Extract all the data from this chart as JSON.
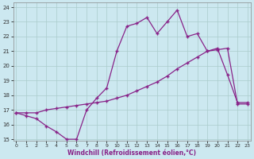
{
  "xlabel": "Windchill (Refroidissement éolien,°C)",
  "bg_color": "#cce8f0",
  "grid_color": "#aacccc",
  "line_color": "#882288",
  "line1_x": [
    0,
    1,
    2,
    3,
    4,
    5,
    6,
    7,
    8,
    9,
    10,
    11,
    12,
    13,
    14,
    15,
    16,
    17,
    18,
    19,
    20,
    21,
    22,
    23
  ],
  "line1_y": [
    16.8,
    16.6,
    16.4,
    15.9,
    15.5,
    15.0,
    15.0,
    17.0,
    17.8,
    18.5,
    21.0,
    22.7,
    22.9,
    23.3,
    22.2,
    23.0,
    23.8,
    22.0,
    22.2,
    21.0,
    21.2,
    19.4,
    17.5,
    17.5
  ],
  "line2_x": [
    0,
    1,
    2,
    3,
    4,
    5,
    6,
    7,
    8,
    9,
    10,
    11,
    12,
    13,
    14,
    15,
    16,
    17,
    18,
    19,
    20,
    21,
    22,
    23
  ],
  "line2_y": [
    16.8,
    16.8,
    16.8,
    17.0,
    17.1,
    17.2,
    17.3,
    17.4,
    17.5,
    17.6,
    17.8,
    18.0,
    18.3,
    18.6,
    18.9,
    19.3,
    19.8,
    20.2,
    20.6,
    21.0,
    21.1,
    21.2,
    17.4,
    17.4
  ],
  "xlim": [
    0,
    23
  ],
  "ylim": [
    14.9,
    24.3
  ],
  "yticks": [
    15,
    16,
    17,
    18,
    19,
    20,
    21,
    22,
    23,
    24
  ],
  "xticks": [
    0,
    1,
    2,
    3,
    4,
    5,
    6,
    7,
    8,
    9,
    10,
    11,
    12,
    13,
    14,
    15,
    16,
    17,
    18,
    19,
    20,
    21,
    22,
    23
  ]
}
